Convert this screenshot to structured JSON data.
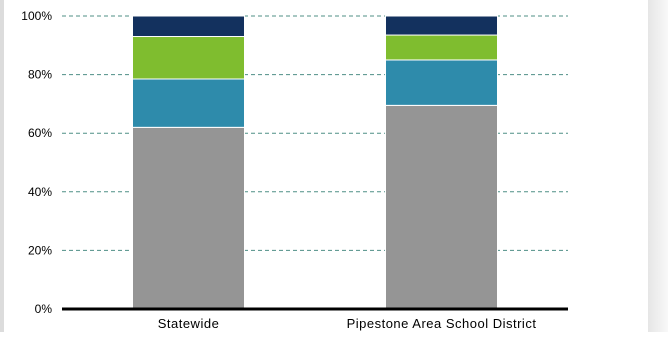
{
  "chart_data": {
    "type": "bar",
    "stacked": true,
    "categories": [
      "Statewide",
      "Pipestone Area School District"
    ],
    "series": [
      {
        "values": [
          62,
          69.5
        ],
        "color": "#959595"
      },
      {
        "values": [
          16.5,
          15.5
        ],
        "color": "#2e8bab"
      },
      {
        "values": [
          14.5,
          8.5
        ],
        "color": "#7fbd2f"
      },
      {
        "values": [
          7,
          6.5
        ],
        "color": "#13315e"
      }
    ],
    "ylim": [
      0,
      100
    ],
    "yticks": [
      0,
      20,
      40,
      60,
      80,
      100
    ],
    "ytick_labels": [
      "0%",
      "20%",
      "40%",
      "60%",
      "80%",
      "100%"
    ],
    "grid": true,
    "grid_style": "dashed"
  }
}
